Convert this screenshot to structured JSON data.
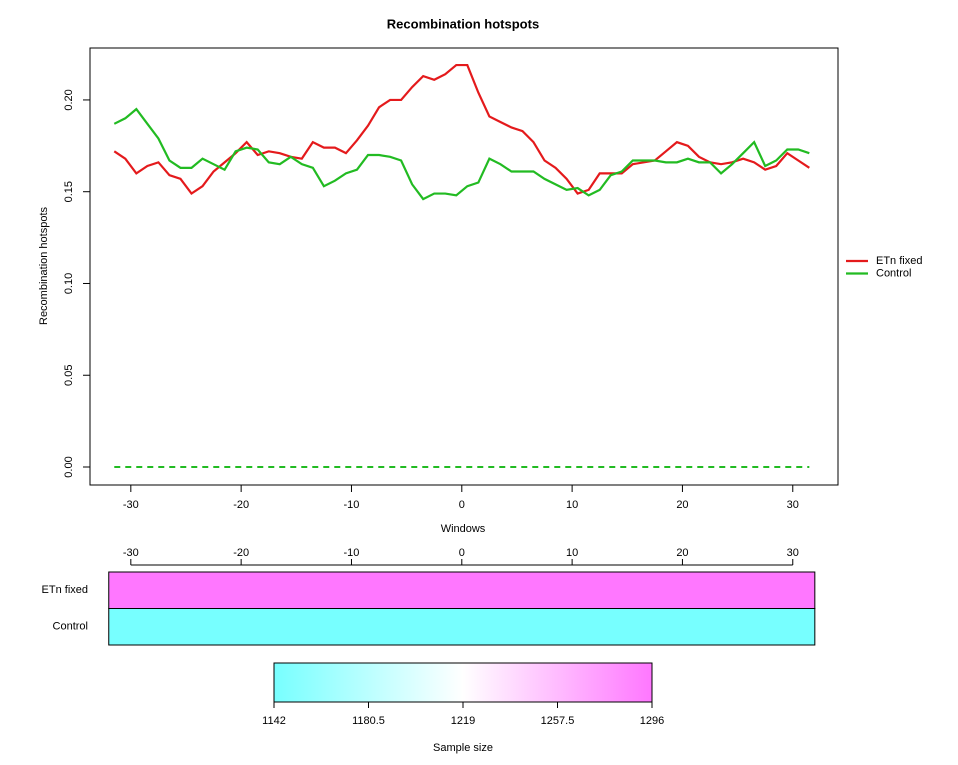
{
  "chart_data": [
    {
      "type": "line",
      "title": "Recombination hotspots",
      "xlabel": "Windows",
      "ylabel": "Recombination hotspots",
      "x": [
        -31.5,
        -30.5,
        -29.5,
        -28.5,
        -27.5,
        -26.5,
        -25.5,
        -24.5,
        -23.5,
        -22.5,
        -21.5,
        -20.5,
        -19.5,
        -18.5,
        -17.5,
        -16.5,
        -15.5,
        -14.5,
        -13.5,
        -12.5,
        -11.5,
        -10.5,
        -9.5,
        -8.5,
        -7.5,
        -6.5,
        -5.5,
        -4.5,
        -3.5,
        -2.5,
        -1.5,
        -0.5,
        0.5,
        1.5,
        2.5,
        3.5,
        4.5,
        5.5,
        6.5,
        7.5,
        8.5,
        9.5,
        10.5,
        11.5,
        12.5,
        13.5,
        14.5,
        15.5,
        16.5,
        17.5,
        18.5,
        19.5,
        20.5,
        21.5,
        22.5,
        23.5,
        24.5,
        25.5,
        26.5,
        27.5,
        28.5,
        29.5,
        30.5,
        31.5
      ],
      "series": [
        {
          "name": "ETn fixed",
          "color": "#e41a1c",
          "values": [
            0.172,
            0.168,
            0.16,
            0.164,
            0.166,
            0.159,
            0.157,
            0.149,
            0.153,
            0.161,
            0.166,
            0.171,
            0.177,
            0.17,
            0.172,
            0.171,
            0.169,
            0.168,
            0.177,
            0.174,
            0.174,
            0.171,
            0.178,
            0.186,
            0.196,
            0.2,
            0.2,
            0.207,
            0.213,
            0.211,
            0.214,
            0.219,
            0.219,
            0.204,
            0.191,
            0.188,
            0.185,
            0.183,
            0.177,
            0.167,
            0.163,
            0.157,
            0.149,
            0.151,
            0.16,
            0.16,
            0.16,
            0.165,
            0.166,
            0.167,
            0.172,
            0.177,
            0.175,
            0.169,
            0.166,
            0.165,
            0.166,
            0.168,
            0.166,
            0.162,
            0.164,
            0.171,
            0.167,
            0.163
          ]
        },
        {
          "name": "Control",
          "color": "#22bb22",
          "values": [
            0.187,
            0.19,
            0.195,
            0.187,
            0.179,
            0.167,
            0.163,
            0.163,
            0.168,
            0.165,
            0.162,
            0.172,
            0.174,
            0.173,
            0.166,
            0.165,
            0.169,
            0.165,
            0.163,
            0.153,
            0.156,
            0.16,
            0.162,
            0.17,
            0.17,
            0.169,
            0.167,
            0.154,
            0.146,
            0.149,
            0.149,
            0.148,
            0.153,
            0.155,
            0.168,
            0.165,
            0.161,
            0.161,
            0.161,
            0.157,
            0.154,
            0.151,
            0.152,
            0.148,
            0.151,
            0.159,
            0.161,
            0.167,
            0.167,
            0.167,
            0.166,
            0.166,
            0.168,
            0.166,
            0.166,
            0.16,
            0.165,
            0.171,
            0.177,
            0.164,
            0.167,
            0.173,
            0.173,
            0.171
          ]
        }
      ],
      "reference_line": {
        "y": 0,
        "color": "#22bb22",
        "style": "dashed"
      },
      "xlim": [
        -33.7,
        34.1
      ],
      "xticks": [
        -30,
        -20,
        -10,
        0,
        10,
        20,
        30
      ],
      "ylim": [
        -0.0098,
        0.2283
      ],
      "yticks": [
        {
          "value": 0,
          "label": "0.00"
        },
        {
          "value": 0.05,
          "label": "0.05"
        },
        {
          "value": 0.1,
          "label": "0.10"
        },
        {
          "value": 0.15,
          "label": "0.15"
        },
        {
          "value": 0.2,
          "label": "0.20"
        }
      ],
      "legend": "right"
    },
    {
      "type": "heatmap",
      "rows": [
        "ETn fixed",
        "Control"
      ],
      "values": [
        1296,
        1142
      ],
      "xrange": [
        -32,
        32
      ],
      "xlim": [
        -33.7,
        34.1
      ],
      "xticks": [
        -30,
        -20,
        -10,
        0,
        10,
        20,
        30
      ],
      "colormap": [
        "#77ffff",
        "#ffffff",
        "#ff77ff"
      ],
      "colorbar": {
        "label": "Sample size",
        "lim": [
          1142,
          1296
        ],
        "ticks": [
          1142,
          {
            "value": 1180.5,
            "label": "1180.5"
          },
          1219,
          {
            "value": 1257.5,
            "label": "1257.5"
          },
          1296
        ]
      }
    }
  ]
}
